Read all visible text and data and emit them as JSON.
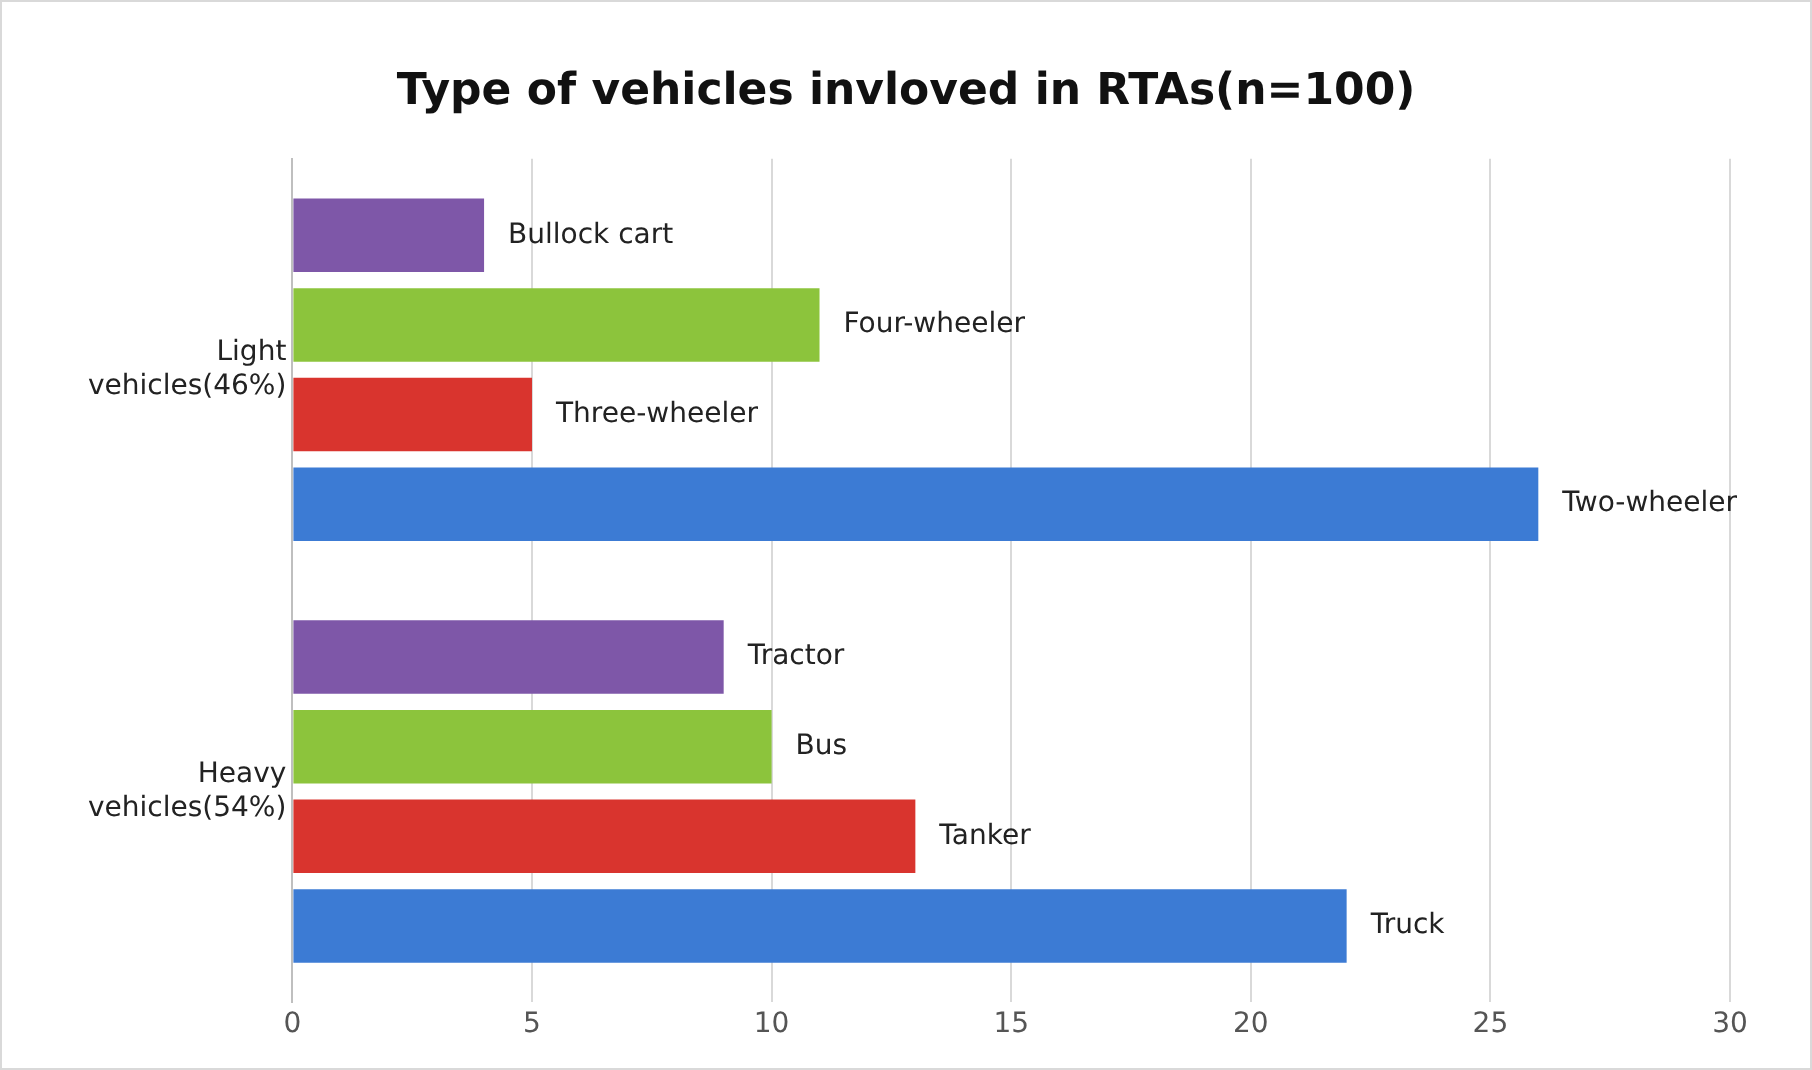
{
  "chart_data": {
    "type": "bar",
    "orientation": "horizontal",
    "title": "Type of vehicles invloved in RTAs(n=100)",
    "categories": [
      "Light vehicles(46%)",
      "Heavy vehicles(54%)"
    ],
    "series": [
      {
        "color": "#7e57a8",
        "values": [
          4,
          9
        ],
        "value_labels": [
          "Bullock cart",
          "Tractor"
        ]
      },
      {
        "color": "#8cc43c",
        "values": [
          11,
          10
        ],
        "value_labels": [
          "Four-wheeler",
          "Bus"
        ]
      },
      {
        "color": "#d9342e",
        "values": [
          5,
          13
        ],
        "value_labels": [
          "Three-wheeler",
          "Tanker"
        ]
      },
      {
        "color": "#3c7bd4",
        "values": [
          26,
          22
        ],
        "value_labels": [
          "Two-wheeler",
          "Truck"
        ]
      }
    ],
    "xlim": [
      0,
      30
    ],
    "xticks": [
      0,
      5,
      10,
      15,
      20,
      25,
      30
    ],
    "grid": "x",
    "legend": false
  }
}
